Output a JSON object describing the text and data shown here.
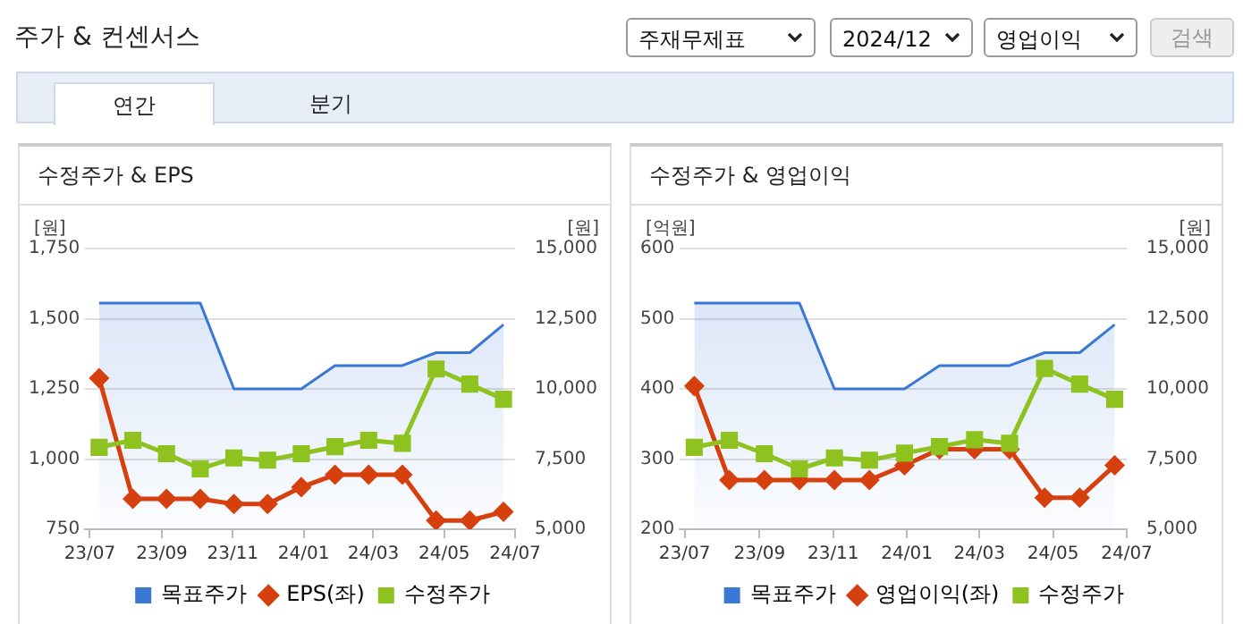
{
  "chart_data": [
    {
      "type": "other",
      "title": "주가 & 컨센서스",
      "annotations": [
        "주재무제표",
        "2024/12",
        "영업이익",
        "검색",
        "연간",
        "분기"
      ]
    },
    {
      "type": "line",
      "title": "수정주가 & EPS",
      "ylabel": "[원]",
      "y2label": "[원]",
      "x": [
        "2023-07-09",
        "2023-08-07",
        "2023-09-05",
        "2023-10-04",
        "2023-11-02",
        "2023-12-01",
        "2023-12-30",
        "2024-01-28",
        "2024-02-26",
        "2024-03-26",
        "2024-04-24",
        "2024-05-23",
        "2024-06-21"
      ],
      "xlim": [
        "2023-06-27",
        "2024-07-01"
      ],
      "xticks": [
        {
          "value": "2023-07",
          "label": "23/07"
        },
        {
          "value": "2023-09",
          "label": "23/09"
        },
        {
          "value": "2023-11",
          "label": "23/11"
        },
        {
          "value": "2024-01",
          "label": "24/01"
        },
        {
          "value": "2024-03",
          "label": "24/03"
        },
        {
          "value": "2024-05",
          "label": "24/05"
        },
        {
          "value": "2024-07",
          "label": "24/07"
        }
      ],
      "ylim": [
        750,
        1750
      ],
      "yticks": [
        {
          "value": 750,
          "label": "750"
        },
        {
          "value": 1000,
          "label": "1,000"
        },
        {
          "value": 1250,
          "label": "1,250"
        },
        {
          "value": 1500,
          "label": "1,500"
        },
        {
          "value": 1750,
          "label": "1,750"
        }
      ],
      "y2lim": [
        5000,
        15000
      ],
      "y2ticks": [
        {
          "value": 5000,
          "label": "5,000"
        },
        {
          "value": 7500,
          "label": "7,500"
        },
        {
          "value": 10000,
          "label": "10,000"
        },
        {
          "value": 12500,
          "label": "12,500"
        },
        {
          "value": 15000,
          "label": "15,000"
        }
      ],
      "grid": "y",
      "legend": "bottom",
      "series": [
        {
          "name": "목표주가",
          "type": "area",
          "axis": "y2",
          "marker": "none",
          "color": "#3a78d6",
          "values": [
            13060,
            13060,
            13060,
            13060,
            10000,
            10000,
            10000,
            10830,
            10830,
            10830,
            11290,
            11290,
            12290
          ]
        },
        {
          "name": "EPS(좌)",
          "type": "line",
          "marker": "diamond",
          "color": "#d6400e",
          "values": [
            1288,
            858,
            858,
            858,
            840,
            840,
            900,
            944,
            944,
            944,
            781,
            781,
            812
          ]
        },
        {
          "name": "수정주가",
          "type": "line",
          "axis": "y2",
          "marker": "square",
          "color": "#8dc21f",
          "values": [
            7920,
            8170,
            7690,
            7150,
            7540,
            7460,
            7690,
            7940,
            8170,
            8060,
            10710,
            10170,
            9630
          ]
        }
      ]
    },
    {
      "type": "line",
      "title": "수정주가 & 영업이익",
      "ylabel": "[억원]",
      "y2label": "[원]",
      "x": [
        "2023-07-09",
        "2023-08-07",
        "2023-09-05",
        "2023-10-04",
        "2023-11-02",
        "2023-12-01",
        "2023-12-30",
        "2024-01-28",
        "2024-02-26",
        "2024-03-26",
        "2024-04-24",
        "2024-05-23",
        "2024-06-21"
      ],
      "xlim": [
        "2023-06-27",
        "2024-07-01"
      ],
      "xticks": [
        {
          "value": "2023-07",
          "label": "23/07"
        },
        {
          "value": "2023-09",
          "label": "23/09"
        },
        {
          "value": "2023-11",
          "label": "23/11"
        },
        {
          "value": "2024-01",
          "label": "24/01"
        },
        {
          "value": "2024-03",
          "label": "24/03"
        },
        {
          "value": "2024-05",
          "label": "24/05"
        },
        {
          "value": "2024-07",
          "label": "24/07"
        }
      ],
      "ylim": [
        200,
        600
      ],
      "yticks": [
        200,
        300,
        400,
        500,
        600
      ],
      "y2lim": [
        5000,
        15000
      ],
      "y2ticks": [
        {
          "value": 5000,
          "label": "5,000"
        },
        {
          "value": 7500,
          "label": "7,500"
        },
        {
          "value": 10000,
          "label": "10,000"
        },
        {
          "value": 12500,
          "label": "12,500"
        },
        {
          "value": 15000,
          "label": "15,000"
        }
      ],
      "grid": "y",
      "legend": "bottom",
      "series": [
        {
          "name": "목표주가",
          "type": "area",
          "axis": "y2",
          "marker": "none",
          "color": "#3a78d6",
          "values": [
            13060,
            13060,
            13060,
            13060,
            10000,
            10000,
            10000,
            10830,
            10830,
            10830,
            11290,
            11290,
            12290
          ]
        },
        {
          "name": "영업이익(좌)",
          "type": "line",
          "marker": "diamond",
          "color": "#d6400e",
          "values": [
            404,
            270,
            270,
            270,
            270,
            270,
            291,
            314,
            314,
            314,
            245,
            245,
            291
          ]
        },
        {
          "name": "수정주가",
          "type": "line",
          "axis": "y2",
          "marker": "square",
          "color": "#8dc21f",
          "values": [
            7920,
            8170,
            7690,
            7150,
            7540,
            7460,
            7710,
            7940,
            8190,
            8060,
            10730,
            10170,
            9630
          ]
        }
      ]
    }
  ]
}
